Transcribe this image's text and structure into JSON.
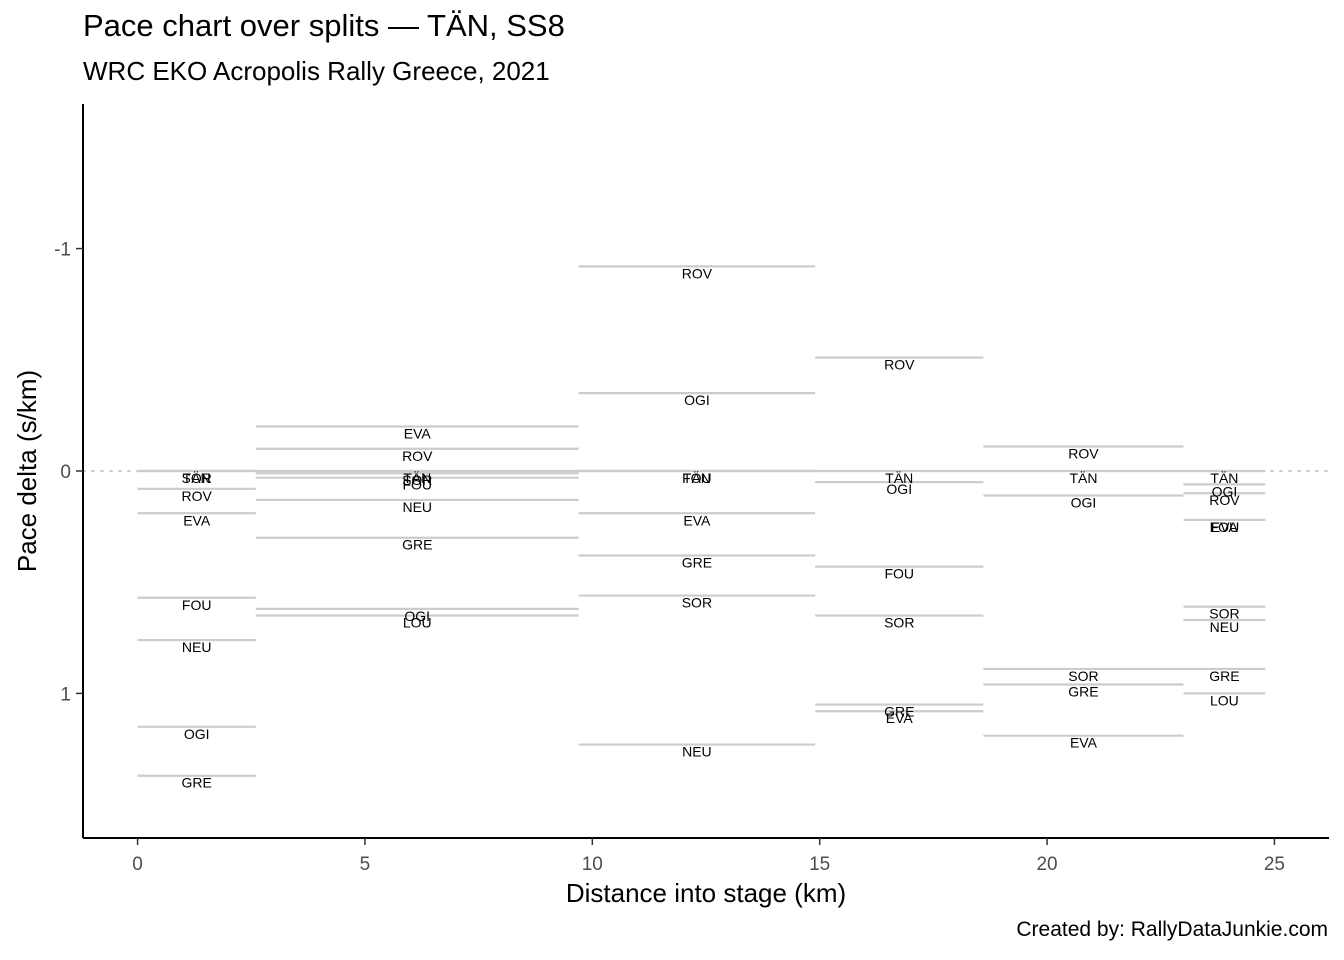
{
  "title": "Pace chart over splits — TÄN, SS8",
  "subtitle": "WRC EKO Acropolis Rally Greece, 2021",
  "caption": "Created by: RallyDataJunkie.com",
  "chart_data": {
    "type": "segments",
    "xlabel": "Distance into stage (km)",
    "ylabel": "Pace delta (s/km)",
    "xlim": [
      -1.2,
      26.2
    ],
    "ylim": [
      1.65,
      -1.65
    ],
    "y_reversed": true,
    "x_ticks": [
      0,
      5,
      10,
      15,
      20,
      25
    ],
    "y_ticks": [
      -1,
      0,
      1
    ],
    "reference_line": {
      "y": 0,
      "style": "dotted",
      "color": "#cccccc"
    },
    "grid": false,
    "segment_color": "#cccccc",
    "splits": [
      {
        "start": 0,
        "end": 2.6,
        "drivers": [
          {
            "name": "TÄN",
            "pace": 0.0
          },
          {
            "name": "SOR",
            "pace": 0.0
          },
          {
            "name": "ROV",
            "pace": 0.08
          },
          {
            "name": "EVA",
            "pace": 0.19
          },
          {
            "name": "FOU",
            "pace": 0.57
          },
          {
            "name": "NEU",
            "pace": 0.76
          },
          {
            "name": "OGI",
            "pace": 1.15
          },
          {
            "name": "GRE",
            "pace": 1.37
          }
        ]
      },
      {
        "start": 2.6,
        "end": 9.7,
        "drivers": [
          {
            "name": "EVA",
            "pace": -0.2
          },
          {
            "name": "ROV",
            "pace": -0.1
          },
          {
            "name": "TÄN",
            "pace": 0.0
          },
          {
            "name": "SOR",
            "pace": 0.01
          },
          {
            "name": "FOU",
            "pace": 0.03
          },
          {
            "name": "NEU",
            "pace": 0.13
          },
          {
            "name": "GRE",
            "pace": 0.3
          },
          {
            "name": "OGI",
            "pace": 0.62
          },
          {
            "name": "LOU",
            "pace": 0.65
          }
        ]
      },
      {
        "start": 9.7,
        "end": 14.9,
        "drivers": [
          {
            "name": "ROV",
            "pace": -0.92
          },
          {
            "name": "OGI",
            "pace": -0.35
          },
          {
            "name": "FOU",
            "pace": 0.0
          },
          {
            "name": "TÄN",
            "pace": 0.0
          },
          {
            "name": "EVA",
            "pace": 0.19
          },
          {
            "name": "GRE",
            "pace": 0.38
          },
          {
            "name": "SOR",
            "pace": 0.56
          },
          {
            "name": "NEU",
            "pace": 1.23
          }
        ]
      },
      {
        "start": 14.9,
        "end": 18.6,
        "drivers": [
          {
            "name": "ROV",
            "pace": -0.51
          },
          {
            "name": "TÄN",
            "pace": 0.0
          },
          {
            "name": "OGI",
            "pace": 0.05
          },
          {
            "name": "FOU",
            "pace": 0.43
          },
          {
            "name": "SOR",
            "pace": 0.65
          },
          {
            "name": "GRE",
            "pace": 1.05
          },
          {
            "name": "EVA",
            "pace": 1.08
          }
        ]
      },
      {
        "start": 18.6,
        "end": 23.0,
        "drivers": [
          {
            "name": "ROV",
            "pace": -0.11
          },
          {
            "name": "TÄN",
            "pace": 0.0
          },
          {
            "name": "OGI",
            "pace": 0.11
          },
          {
            "name": "SOR",
            "pace": 0.89
          },
          {
            "name": "GRE",
            "pace": 0.96
          },
          {
            "name": "EVA",
            "pace": 1.19
          }
        ]
      },
      {
        "start": 23.0,
        "end": 24.8,
        "drivers": [
          {
            "name": "TÄN",
            "pace": 0.0
          },
          {
            "name": "OGI",
            "pace": 0.06
          },
          {
            "name": "ROV",
            "pace": 0.1
          },
          {
            "name": "EVA",
            "pace": 0.22
          },
          {
            "name": "FOU",
            "pace": 0.22
          },
          {
            "name": "SOR",
            "pace": 0.61
          },
          {
            "name": "NEU",
            "pace": 0.67
          },
          {
            "name": "GRE",
            "pace": 0.89
          },
          {
            "name": "LOU",
            "pace": 1.0
          }
        ]
      }
    ]
  }
}
